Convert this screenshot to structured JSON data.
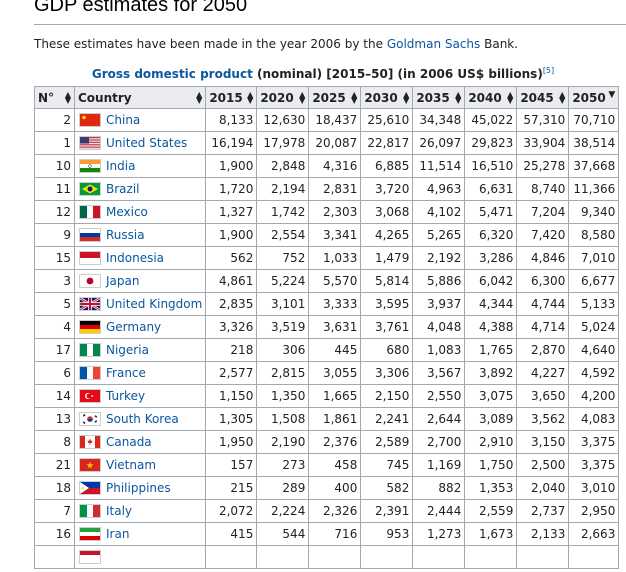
{
  "page": {
    "heading": "GDP estimates for 2050",
    "intro_before": "These estimates have been made in the year 2006 by the ",
    "intro_link": "Goldman Sachs",
    "intro_after": " Bank.",
    "caption_link": "Gross domestic product",
    "caption_rest": " (nominal) [2015–50] (in 2006 US$ billions)",
    "caption_ref": "[5]"
  },
  "table": {
    "headers": [
      "N°",
      "Country",
      "2015",
      "2020",
      "2025",
      "2030",
      "2035",
      "2040",
      "2045",
      "2050"
    ],
    "sort_icons": {
      "default": "▲▼",
      "active": "▼"
    },
    "rows": [
      {
        "n": "2",
        "country": "China",
        "flag": "china",
        "v": [
          "8,133",
          "12,630",
          "18,437",
          "25,610",
          "34,348",
          "45,022",
          "57,310",
          "70,710"
        ]
      },
      {
        "n": "1",
        "country": "United States",
        "flag": "usa",
        "v": [
          "16,194",
          "17,978",
          "20,087",
          "22,817",
          "26,097",
          "29,823",
          "33,904",
          "38,514"
        ]
      },
      {
        "n": "10",
        "country": "India",
        "flag": "india",
        "v": [
          "1,900",
          "2,848",
          "4,316",
          "6,885",
          "11,514",
          "16,510",
          "25,278",
          "37,668"
        ]
      },
      {
        "n": "11",
        "country": "Brazil",
        "flag": "brazil",
        "v": [
          "1,720",
          "2,194",
          "2,831",
          "3,720",
          "4,963",
          "6,631",
          "8,740",
          "11,366"
        ]
      },
      {
        "n": "12",
        "country": "Mexico",
        "flag": "mexico",
        "v": [
          "1,327",
          "1,742",
          "2,303",
          "3,068",
          "4,102",
          "5,471",
          "7,204",
          "9,340"
        ]
      },
      {
        "n": "9",
        "country": "Russia",
        "flag": "russia",
        "v": [
          "1,900",
          "2,554",
          "3,341",
          "4,265",
          "5,265",
          "6,320",
          "7,420",
          "8,580"
        ]
      },
      {
        "n": "15",
        "country": "Indonesia",
        "flag": "indonesia",
        "v": [
          "562",
          "752",
          "1,033",
          "1,479",
          "2,192",
          "3,286",
          "4,846",
          "7,010"
        ]
      },
      {
        "n": "3",
        "country": "Japan",
        "flag": "japan",
        "v": [
          "4,861",
          "5,224",
          "5,570",
          "5,814",
          "5,886",
          "6,042",
          "6,300",
          "6,677"
        ]
      },
      {
        "n": "5",
        "country": "United Kingdom",
        "flag": "uk",
        "v": [
          "2,835",
          "3,101",
          "3,333",
          "3,595",
          "3,937",
          "4,344",
          "4,744",
          "5,133"
        ]
      },
      {
        "n": "4",
        "country": "Germany",
        "flag": "germany",
        "v": [
          "3,326",
          "3,519",
          "3,631",
          "3,761",
          "4,048",
          "4,388",
          "4,714",
          "5,024"
        ]
      },
      {
        "n": "17",
        "country": "Nigeria",
        "flag": "nigeria",
        "v": [
          "218",
          "306",
          "445",
          "680",
          "1,083",
          "1,765",
          "2,870",
          "4,640"
        ]
      },
      {
        "n": "6",
        "country": "France",
        "flag": "france",
        "v": [
          "2,577",
          "2,815",
          "3,055",
          "3,306",
          "3,567",
          "3,892",
          "4,227",
          "4,592"
        ]
      },
      {
        "n": "14",
        "country": "Turkey",
        "flag": "turkey",
        "v": [
          "1,150",
          "1,350",
          "1,665",
          "2,150",
          "2,550",
          "3,075",
          "3,650",
          "4,200"
        ]
      },
      {
        "n": "13",
        "country": "South Korea",
        "flag": "southkorea",
        "v": [
          "1,305",
          "1,508",
          "1,861",
          "2,241",
          "2,644",
          "3,089",
          "3,562",
          "4,083"
        ]
      },
      {
        "n": "8",
        "country": "Canada",
        "flag": "canada",
        "v": [
          "1,950",
          "2,190",
          "2,376",
          "2,589",
          "2,700",
          "2,910",
          "3,150",
          "3,375"
        ]
      },
      {
        "n": "21",
        "country": "Vietnam",
        "flag": "vietnam",
        "v": [
          "157",
          "273",
          "458",
          "745",
          "1,169",
          "1,750",
          "2,500",
          "3,375"
        ]
      },
      {
        "n": "18",
        "country": "Philippines",
        "flag": "philippines",
        "v": [
          "215",
          "289",
          "400",
          "582",
          "882",
          "1,353",
          "2,040",
          "3,010"
        ]
      },
      {
        "n": "7",
        "country": "Italy",
        "flag": "italy",
        "v": [
          "2,072",
          "2,224",
          "2,326",
          "2,391",
          "2,444",
          "2,559",
          "2,737",
          "2,950"
        ]
      },
      {
        "n": "16",
        "country": "Iran",
        "flag": "iran",
        "v": [
          "415",
          "544",
          "716",
          "953",
          "1,273",
          "1,673",
          "2,133",
          "2,663"
        ]
      },
      {
        "n": "",
        "country": "",
        "flag": "partial",
        "v": [
          "",
          "",
          "",
          "",
          "",
          "",
          "",
          ""
        ]
      }
    ]
  }
}
